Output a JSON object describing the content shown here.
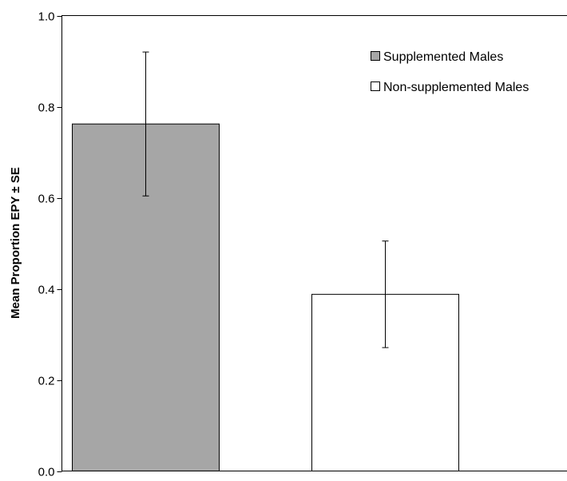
{
  "chart_data": {
    "type": "bar",
    "title": "",
    "xlabel": "",
    "ylabel": "Mean Proportion EPY ± SE",
    "ylim": [
      0,
      1
    ],
    "yticks": [
      "0.0",
      "0.2",
      "0.4",
      "0.6",
      "0.8",
      "1.0"
    ],
    "yticks_values": [
      0,
      0.2,
      0.4,
      0.6,
      0.8,
      1.0
    ],
    "categories": [
      "Supplemented Males",
      "Non-supplemented Males"
    ],
    "values": [
      0.762,
      0.388
    ],
    "errors": [
      0.158,
      0.117
    ],
    "colors": [
      "#a6a6a6",
      "#ffffff"
    ],
    "legend": [
      {
        "label": "Supplemented Males",
        "color": "#a6a6a6"
      },
      {
        "label": "Non-supplemented Males",
        "color": "#ffffff"
      }
    ],
    "legend_position": "top-right",
    "grid": false
  }
}
